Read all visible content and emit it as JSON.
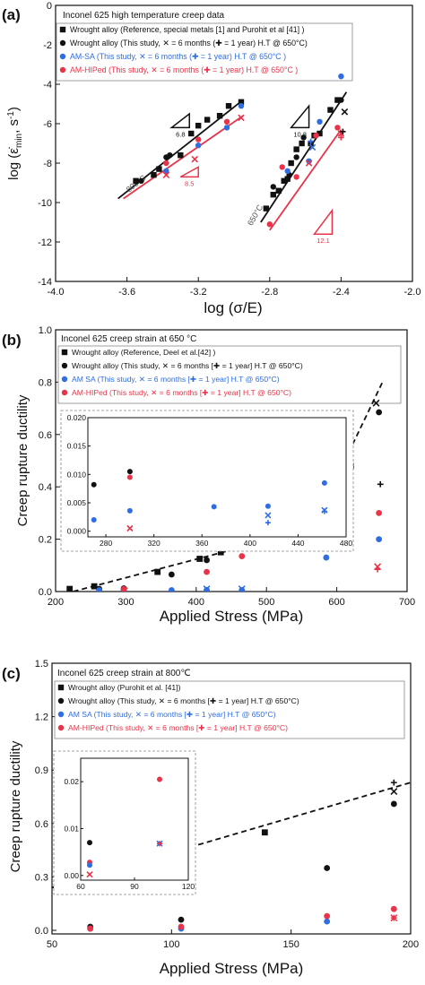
{
  "colors": {
    "black": "#111111",
    "blue": "#2f6de0",
    "red": "#e8344a",
    "frame": "#555555",
    "fit_gray": "#555555"
  },
  "chart_data": [
    {
      "panel_label": "(a)",
      "type": "scatter",
      "title": "Inconel 625 high temperature creep data",
      "xlabel": "log (σ/E)",
      "ylabel_main": "log (ε̇",
      "ylabel_sub": "min",
      "ylabel_unit": ", s",
      "ylabel_sup": "-1",
      "ylabel_close": ")",
      "xlim": [
        -4.0,
        -2.0
      ],
      "ylim": [
        -14,
        0
      ],
      "x_ticks": [
        -4.0,
        -3.6,
        -3.2,
        -2.8,
        -2.4,
        -2.0
      ],
      "x_tick_labels": [
        "-4.0",
        "-3.6",
        "-3.2",
        "-2.8",
        "-2.4",
        "-2.0"
      ],
      "y_ticks": [
        0,
        -2,
        -4,
        -6,
        -8,
        -10,
        -12,
        -14
      ],
      "y_tick_labels": [
        "0",
        "-2",
        "-4",
        "-6",
        "-8",
        "-10",
        "-12",
        "-14"
      ],
      "legend": [
        {
          "marker": "square",
          "color": "black",
          "text": "Wrought alloy (Reference, special metals [1] and Purohit et al [41] )"
        },
        {
          "marker": "circle",
          "color": "black",
          "text": "Wrought alloy (This study,  ✕ = 6 months (✚ = 1 year) H.T @ 650°C)"
        },
        {
          "marker": "circle",
          "color": "blue",
          "text": "AM-SA              (This study,  ✕ = 6 months (✚ = 1 year) H.T @ 650°C )"
        },
        {
          "marker": "circle",
          "color": "red",
          "text": "AM-HIPed        (This study,  ✕ = 6 months (✚ = 1 year) H.T @ 650°C )"
        }
      ],
      "annotations": [
        {
          "text": "800°C",
          "x": -3.59,
          "y": -9.5,
          "rotate": -38,
          "color": "fit_gray",
          "size": 9
        },
        {
          "text": "650°C",
          "x": -2.9,
          "y": -11.2,
          "rotate": -60,
          "color": "fit_gray",
          "size": 9
        }
      ],
      "slope_triangles": [
        {
          "x0": -3.35,
          "x1": -3.25,
          "yb": -6.2,
          "yt": -5.5,
          "color": "black",
          "label": "6.8"
        },
        {
          "x0": -3.3,
          "x1": -3.2,
          "yb": -8.7,
          "yt": -8.2,
          "color": "red",
          "label": "8.5"
        },
        {
          "x0": -2.68,
          "x1": -2.58,
          "yb": -6.2,
          "yt": -5.1,
          "color": "black",
          "label": "10.8"
        },
        {
          "x0": -2.55,
          "x1": -2.45,
          "yb": -11.6,
          "yt": -10.4,
          "color": "red",
          "label": "12.1"
        }
      ],
      "lines": [
        {
          "color": "black",
          "width": 1.8,
          "dash": false,
          "x": [
            -3.65,
            -2.95
          ],
          "y": [
            -9.8,
            -4.8
          ]
        },
        {
          "color": "red",
          "width": 1.8,
          "dash": false,
          "x": [
            -3.62,
            -2.95
          ],
          "y": [
            -9.8,
            -5.6
          ]
        },
        {
          "color": "black",
          "width": 1.8,
          "dash": false,
          "x": [
            -2.85,
            -2.37
          ],
          "y": [
            -11.0,
            -4.4
          ]
        },
        {
          "color": "red",
          "width": 1.8,
          "dash": false,
          "x": [
            -2.8,
            -2.4
          ],
          "y": [
            -11.4,
            -6.3
          ]
        }
      ],
      "series": [
        {
          "name": "Wrought alloy (Reference)",
          "marker": "square",
          "color": "black",
          "x": [
            -3.55,
            -3.45,
            -3.42,
            -3.3,
            -3.24,
            -3.2,
            -3.15,
            -3.08,
            -3.03,
            -2.96,
            -2.82,
            -2.78,
            -2.75,
            -2.72,
            -2.7,
            -2.68,
            -2.65,
            -2.62,
            -2.57,
            -2.55,
            -2.52,
            -2.46,
            -2.42
          ],
          "y": [
            -8.9,
            -8.6,
            -8.3,
            -7.6,
            -6.5,
            -6.1,
            -5.8,
            -5.6,
            -5.1,
            -4.9,
            -10.3,
            -9.6,
            -9.4,
            -8.9,
            -8.8,
            -8.0,
            -7.3,
            -7.0,
            -7.0,
            -6.6,
            -6.5,
            -5.3,
            -4.8
          ]
        },
        {
          "name": "Wrought alloy (This study)",
          "marker": "circle",
          "color": "black",
          "x": [
            -3.52,
            -3.38,
            -3.36,
            -2.78,
            -2.69,
            -2.65,
            -2.61,
            -2.4
          ],
          "y": [
            -8.9,
            -7.7,
            -7.6,
            -9.2,
            -8.6,
            -7.7,
            -6.7,
            -4.8
          ]
        },
        {
          "name": "AM-SA",
          "marker": "circle",
          "color": "blue",
          "x": [
            -3.38,
            -3.2,
            -3.04,
            -2.96,
            -2.7,
            -2.58,
            -2.52,
            -2.4
          ],
          "y": [
            -8.4,
            -7.1,
            -6.2,
            -5.1,
            -8.4,
            -7.9,
            -5.9,
            -3.6
          ]
        },
        {
          "name": "AM-HIPed",
          "marker": "circle",
          "color": "red",
          "x": [
            -3.38,
            -3.2,
            -3.04,
            -2.8,
            -2.73,
            -2.65,
            -2.54,
            -2.42
          ],
          "y": [
            -8.0,
            -6.8,
            -5.9,
            -11.1,
            -8.2,
            -8.7,
            -6.6,
            -6.2
          ]
        },
        {
          "name": "AM-SA 6 months",
          "marker": "x",
          "color": "blue",
          "x": [
            -2.56
          ],
          "y": [
            -7.2
          ]
        },
        {
          "name": "AM-HIPed 6 months",
          "marker": "x",
          "color": "red",
          "x": [
            -3.38,
            -3.22,
            -2.96,
            -2.58,
            -2.4
          ],
          "y": [
            -8.6,
            -7.8,
            -5.7,
            -8.0,
            -6.5
          ]
        },
        {
          "name": "Wrought 6 months",
          "marker": "x",
          "color": "black",
          "x": [
            -2.38
          ],
          "y": [
            -5.4
          ]
        },
        {
          "name": "Wrought 1 year",
          "marker": "plus",
          "color": "black",
          "x": [
            -2.39
          ],
          "y": [
            -6.4
          ]
        },
        {
          "name": "AM-SA 1 year",
          "marker": "plus",
          "color": "blue",
          "x": [
            -2.57
          ],
          "y": [
            -6.9
          ]
        },
        {
          "name": "AM-HIPed 1 year",
          "marker": "plus",
          "color": "red",
          "x": [
            -2.4
          ],
          "y": [
            -6.7
          ]
        }
      ]
    },
    {
      "panel_label": "(b)",
      "type": "scatter",
      "title": "Inconel 625 creep strain at 650 °C",
      "xlabel": "Applied Stress (MPa)",
      "ylabel": "Creep rupture ductility",
      "xlim": [
        200,
        700
      ],
      "ylim": [
        0,
        1.0
      ],
      "x_ticks": [
        200,
        300,
        400,
        500,
        600,
        700
      ],
      "x_tick_labels": [
        "200",
        "300",
        "400",
        "500",
        "600",
        "700"
      ],
      "y_ticks": [
        0.0,
        0.2,
        0.4,
        0.6,
        0.8,
        1.0
      ],
      "y_tick_labels": [
        "0.0",
        "0.2",
        "0.4",
        "0.6",
        "0.8",
        "1.0"
      ],
      "legend": [
        {
          "marker": "square",
          "color": "black",
          "text": "Wrought alloy  (Reference, Deel et al.[42] )"
        },
        {
          "marker": "circle",
          "color": "black",
          "text": "Wrought alloy  (This study,  ✕ = 6 months [✚ = 1 year] H.T @ 650°C)"
        },
        {
          "marker": "circle",
          "color": "blue",
          "text": "AM SA              (This study,  ✕ = 6 months [✚ = 1 year] H.T @ 650°C)"
        },
        {
          "marker": "circle",
          "color": "red",
          "text": "AM-HIPed        (This study,  ✕ = 6 months [✚ = 1 year] H.T @ 650°C)"
        }
      ],
      "lines": [
        {
          "color": "black",
          "width": 1.8,
          "dash": true,
          "x": [
            225,
            565,
            665
          ],
          "y": [
            0.0,
            0.24,
            0.8
          ]
        }
      ],
      "series": [
        {
          "name": "Wrought alloy (Reference)",
          "marker": "square",
          "color": "black",
          "x": [
            220,
            255,
            345,
            405,
            435,
            470,
            490,
            555,
            620
          ],
          "y": [
            0.01,
            0.02,
            0.075,
            0.125,
            0.15,
            0.19,
            0.18,
            0.24,
            0.48
          ]
        },
        {
          "name": "Wrought alloy (This study)",
          "marker": "circle",
          "color": "black",
          "x": [
            262,
            297,
            365,
            415,
            465,
            660
          ],
          "y": [
            0.01,
            0.012,
            0.065,
            0.12,
            0.185,
            0.685
          ]
        },
        {
          "name": "AM SA",
          "marker": "circle",
          "color": "blue",
          "x": [
            262,
            297,
            365,
            415,
            465,
            585,
            660
          ],
          "y": [
            0.005,
            0.005,
            0.005,
            0.005,
            0.005,
            0.13,
            0.2
          ]
        },
        {
          "name": "AM-HIPed",
          "marker": "circle",
          "color": "red",
          "x": [
            297,
            415,
            465,
            660
          ],
          "y": [
            0.009,
            0.075,
            0.135,
            0.3
          ]
        },
        {
          "name": "6 months black",
          "marker": "x",
          "color": "black",
          "x": [
            656
          ],
          "y": [
            0.72
          ]
        },
        {
          "name": "1 year black",
          "marker": "plus",
          "color": "black",
          "x": [
            662
          ],
          "y": [
            0.41
          ]
        },
        {
          "name": "6 months red",
          "marker": "x",
          "color": "red",
          "x": [
            658,
            298
          ],
          "y": [
            0.095,
            0.003
          ]
        },
        {
          "name": "6 months blue",
          "marker": "x",
          "color": "blue",
          "x": [
            415,
            465
          ],
          "y": [
            0.01,
            0.01
          ]
        },
        {
          "name": "1 year blue",
          "marker": "plus",
          "color": "blue",
          "x": [
            415,
            465
          ],
          "y": [
            0.006,
            0.005
          ]
        },
        {
          "name": "1 year red",
          "marker": "plus",
          "color": "red",
          "x": [
            658
          ],
          "y": [
            0.085
          ]
        }
      ],
      "inset": {
        "xlim": [
          265,
          480
        ],
        "ylim": [
          -0.001,
          0.02
        ],
        "x_ticks": [
          280,
          320,
          360,
          400,
          440,
          480
        ],
        "x_tick_labels": [
          "280",
          "320",
          "360",
          "400",
          "440",
          "480"
        ],
        "y_ticks": [
          0.0,
          0.005,
          0.01,
          0.015,
          0.02
        ],
        "y_tick_labels": [
          "0.000",
          "0.005",
          "0.010",
          "0.015",
          "0.020"
        ],
        "series": [
          {
            "marker": "circle",
            "color": "black",
            "x": [
              270,
              300
            ],
            "y": [
              0.0082,
              0.0105
            ]
          },
          {
            "marker": "circle",
            "color": "red",
            "x": [
              300
            ],
            "y": [
              0.0095
            ]
          },
          {
            "marker": "circle",
            "color": "blue",
            "x": [
              270,
              300,
              370,
              415,
              462
            ],
            "y": [
              0.002,
              0.0036,
              0.0043,
              0.0044,
              0.0085
            ]
          },
          {
            "marker": "x",
            "color": "red",
            "x": [
              300
            ],
            "y": [
              0.0005
            ]
          },
          {
            "marker": "x",
            "color": "blue",
            "x": [
              415,
              462
            ],
            "y": [
              0.0028,
              0.0037
            ]
          },
          {
            "marker": "plus",
            "color": "blue",
            "x": [
              415,
              462
            ],
            "y": [
              0.0015,
              0.0035
            ]
          }
        ]
      }
    },
    {
      "panel_label": "(c)",
      "type": "scatter",
      "title": "Inconel 625 creep strain at 800℃",
      "xlabel": "Applied Stress (MPa)",
      "ylabel": "Creep rupture ductility",
      "xlim": [
        50,
        200
      ],
      "ylim": [
        -0.02,
        1.5
      ],
      "x_ticks": [
        50,
        100,
        150,
        200
      ],
      "x_tick_labels": [
        "50",
        "100",
        "150",
        "200"
      ],
      "y_ticks": [
        0.0,
        0.3,
        0.6,
        0.9,
        1.2,
        1.5
      ],
      "y_tick_labels": [
        "0.0",
        "0.3",
        "0.6",
        "0.9",
        "1.2",
        "1.5"
      ],
      "legend": [
        {
          "marker": "square",
          "color": "black",
          "text": "Wrought alloy  (Purohit et al. [41])"
        },
        {
          "marker": "circle",
          "color": "black",
          "text": "Wrought alloy  (This study,  ✕ = 6 months [✚ = 1 year] H.T @ 650°C)"
        },
        {
          "marker": "circle",
          "color": "blue",
          "text": "AM SA              (This study,  ✕ = 6 months [✚ = 1 year] H.T @ 650°C)"
        },
        {
          "marker": "circle",
          "color": "red",
          "text": "AM-HIPed        (This study,  ✕ = 6 months [✚ = 1 year] H.T @ 650°C)"
        }
      ],
      "lines": [
        {
          "color": "black",
          "width": 1.8,
          "dash": true,
          "x": [
            50,
            200
          ],
          "y": [
            0.24,
            0.83
          ]
        }
      ],
      "series": [
        {
          "name": "Wrought alloy (Purohit et al.)",
          "marker": "square",
          "color": "black",
          "x": [
            70,
            104,
            139
          ],
          "y": [
            0.3,
            0.46,
            0.55
          ]
        },
        {
          "name": "Wrought alloy (This study)",
          "marker": "circle",
          "color": "black",
          "x": [
            66,
            104,
            165,
            193
          ],
          "y": [
            0.02,
            0.06,
            0.35,
            0.71
          ]
        },
        {
          "name": "AM SA",
          "marker": "circle",
          "color": "blue",
          "x": [
            66,
            104,
            165
          ],
          "y": [
            0.01,
            0.01,
            0.05
          ]
        },
        {
          "name": "AM-HIPed",
          "marker": "circle",
          "color": "red",
          "x": [
            66,
            104,
            165,
            193
          ],
          "y": [
            0.01,
            0.02,
            0.08,
            0.12
          ]
        },
        {
          "name": "6 months black",
          "marker": "x",
          "color": "black",
          "x": [
            193
          ],
          "y": [
            0.78
          ]
        },
        {
          "name": "1 year black",
          "marker": "plus",
          "color": "black",
          "x": [
            193
          ],
          "y": [
            0.83
          ]
        },
        {
          "name": "6 months red",
          "marker": "x",
          "color": "red",
          "x": [
            193
          ],
          "y": [
            0.07
          ]
        },
        {
          "name": "1 year red",
          "marker": "plus",
          "color": "red",
          "x": [
            193
          ],
          "y": [
            0.07
          ]
        }
      ],
      "inset": {
        "xlim": [
          60,
          120
        ],
        "ylim": [
          -0.001,
          0.025
        ],
        "x_ticks": [
          60,
          90,
          120
        ],
        "x_tick_labels": [
          "60",
          "90",
          "120"
        ],
        "y_ticks": [
          0.0,
          0.01,
          0.02
        ],
        "y_tick_labels": [
          "0.00",
          "0.01",
          "0.02"
        ],
        "series": [
          {
            "marker": "circle",
            "color": "black",
            "x": [
              65
            ],
            "y": [
              0.007
            ]
          },
          {
            "marker": "circle",
            "color": "red",
            "x": [
              65,
              104
            ],
            "y": [
              0.0028,
              0.0205
            ]
          },
          {
            "marker": "circle",
            "color": "blue",
            "x": [
              65
            ],
            "y": [
              0.0022
            ]
          },
          {
            "marker": "x",
            "color": "red",
            "x": [
              65
            ],
            "y": [
              0.0002
            ]
          },
          {
            "marker": "x",
            "color": "blue",
            "x": [
              104
            ],
            "y": [
              0.0068
            ]
          },
          {
            "marker": "plus",
            "color": "red",
            "x": [
              104
            ],
            "y": [
              0.0068
            ]
          }
        ]
      }
    }
  ]
}
